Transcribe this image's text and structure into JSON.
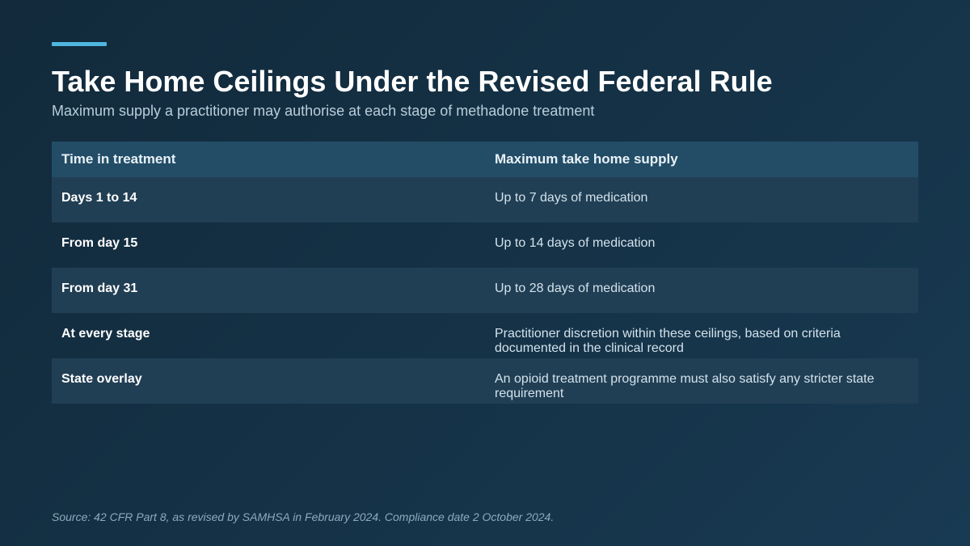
{
  "header": {
    "title": "Take Home Ceilings Under the Revised Federal Rule",
    "subtitle": "Maximum supply a practitioner may authorise at each stage of methadone treatment"
  },
  "table": {
    "columns": [
      "Time in treatment",
      "Maximum take home supply"
    ],
    "rows": [
      {
        "stage": "Days 1 to 14",
        "supply": "Up to 7 days of medication"
      },
      {
        "stage": "From day 15",
        "supply": "Up to 14 days of medication"
      },
      {
        "stage": "From day 31",
        "supply": "Up to 28 days of medication"
      },
      {
        "stage": "At every stage",
        "supply": "Practitioner discretion within these ceilings, based on criteria documented in the clinical record"
      },
      {
        "stage": "State overlay",
        "supply": "An opioid treatment programme must also satisfy any stricter state requirement"
      }
    ]
  },
  "footer": {
    "source": "Source: 42 CFR Part 8, as revised by SAMHSA in February 2024. Compliance date 2 October 2024."
  },
  "colors": {
    "accent": "#4fb6df",
    "background": "#153247",
    "header_row": "#234d67",
    "shaded_row": "#213f54"
  }
}
